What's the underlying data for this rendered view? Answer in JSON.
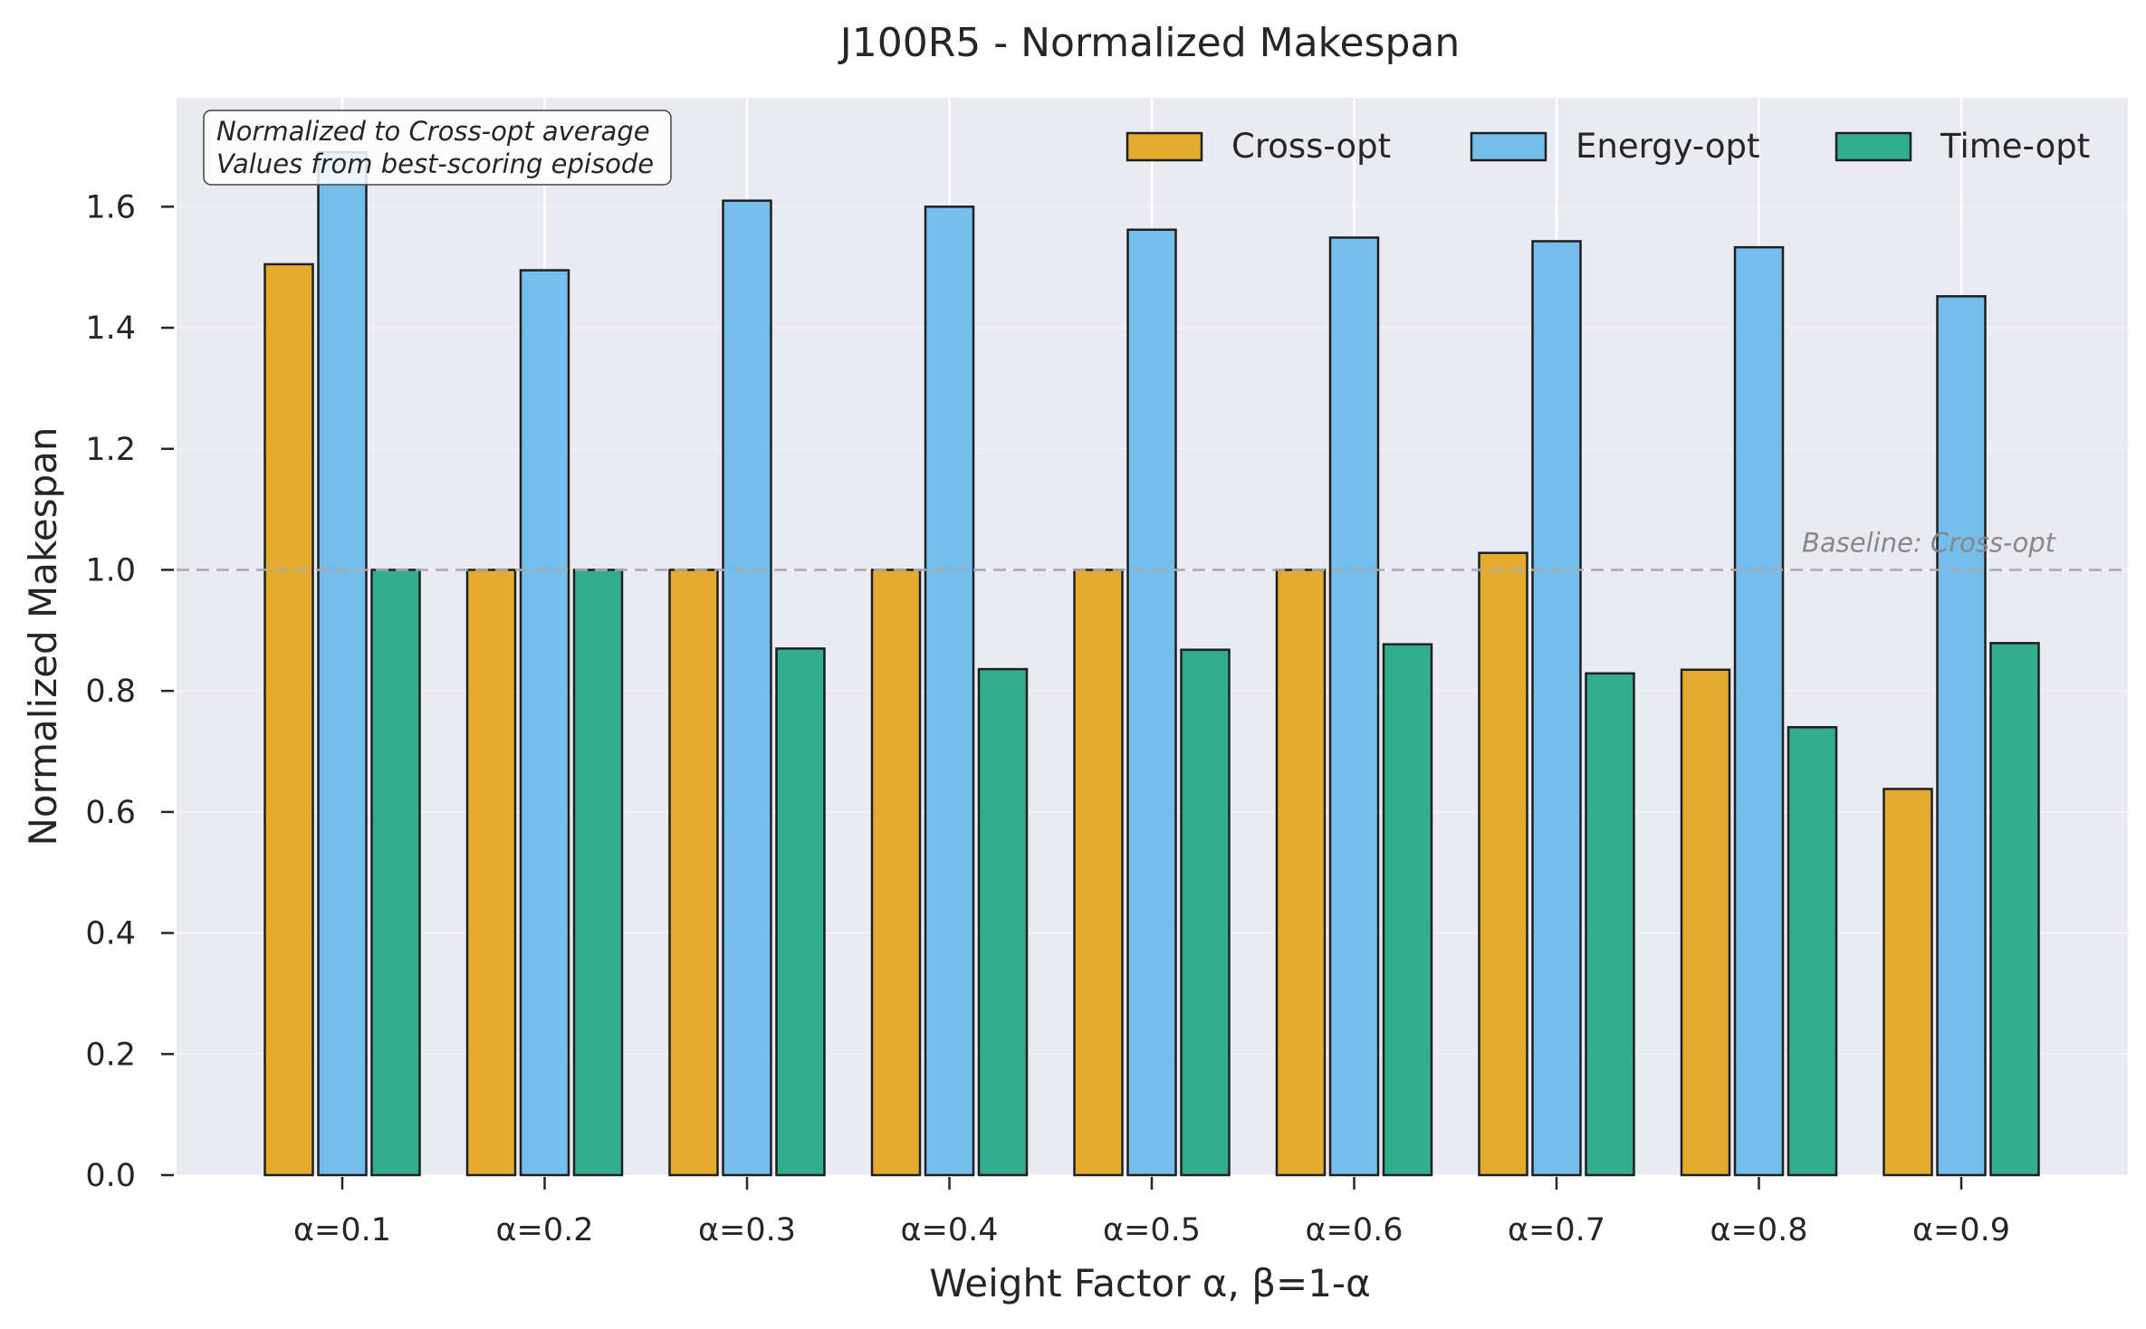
{
  "chart_data": {
    "type": "bar",
    "title": "J100R5 - Normalized Makespan",
    "xlabel": "Weight Factor α, β=1-α",
    "ylabel": "Normalized Makespan",
    "categories": [
      "α=0.1",
      "α=0.2",
      "α=0.3",
      "α=0.4",
      "α=0.5",
      "α=0.6",
      "α=0.7",
      "α=0.8",
      "α=0.9"
    ],
    "series": [
      {
        "name": "Cross-opt",
        "color": "#E3AC2F",
        "values": [
          1.505,
          1.0,
          1.0,
          1.0,
          1.0,
          1.0,
          1.028,
          0.835,
          0.638
        ]
      },
      {
        "name": "Energy-opt",
        "color": "#75BEEB",
        "values": [
          1.69,
          1.495,
          1.61,
          1.6,
          1.562,
          1.549,
          1.543,
          1.533,
          1.452
        ]
      },
      {
        "name": "Time-opt",
        "color": "#30AE8E",
        "values": [
          1.0,
          1.0,
          0.87,
          0.836,
          0.868,
          0.877,
          0.829,
          0.74,
          0.879
        ]
      }
    ],
    "ylim": [
      0,
      1.78
    ],
    "yticks": [
      "0.0",
      "0.2",
      "0.4",
      "0.6",
      "0.8",
      "1.0",
      "1.2",
      "1.4",
      "1.6"
    ],
    "baseline": {
      "value": 1.0,
      "label": "Baseline: Cross-opt",
      "color": "#aaaaaa"
    },
    "annotation": [
      "Normalized to Cross-opt average",
      "Values from best-scoring episode"
    ],
    "legend_position": "top-right",
    "grid": true,
    "background": "#EAEAF2"
  }
}
